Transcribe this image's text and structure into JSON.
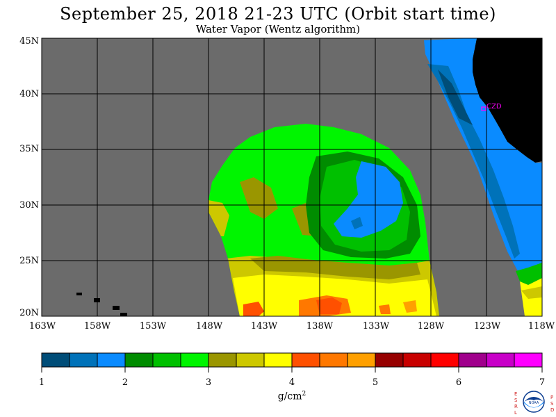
{
  "title": "September 25, 2018  21-23 UTC  (Orbit start time)",
  "subtitle": "Water Vapor (Wentz algorithm)",
  "map": {
    "lat_ticks": [
      "45N",
      "40N",
      "35N",
      "30N",
      "25N",
      "20N"
    ],
    "lon_ticks": [
      "163W",
      "158W",
      "153W",
      "148W",
      "143W",
      "138W",
      "133W",
      "128W",
      "123W",
      "118W"
    ],
    "annotation": "CZD",
    "lat_range": [
      20,
      45
    ],
    "lon_range": [
      -163,
      -118
    ],
    "background_color": "#6b6b6b",
    "land_color": "#000000",
    "grid": true
  },
  "colorbar": {
    "colors": [
      "#004d78",
      "#0072b9",
      "#0a8bff",
      "#008c00",
      "#00c000",
      "#00f500",
      "#9a9600",
      "#cdc800",
      "#ffff00",
      "#ff5000",
      "#ff7800",
      "#ffa000",
      "#960000",
      "#c80000",
      "#ff0000",
      "#a0008c",
      "#c800c8",
      "#ff00ff"
    ],
    "tick_labels": [
      "1",
      "2",
      "3",
      "4",
      "5",
      "6",
      "7"
    ],
    "units": "g/cm",
    "units_sup": "2"
  },
  "logo": {
    "left_letters": "ESRL",
    "right_letters": "PSD",
    "center_text": "NOAA"
  }
}
